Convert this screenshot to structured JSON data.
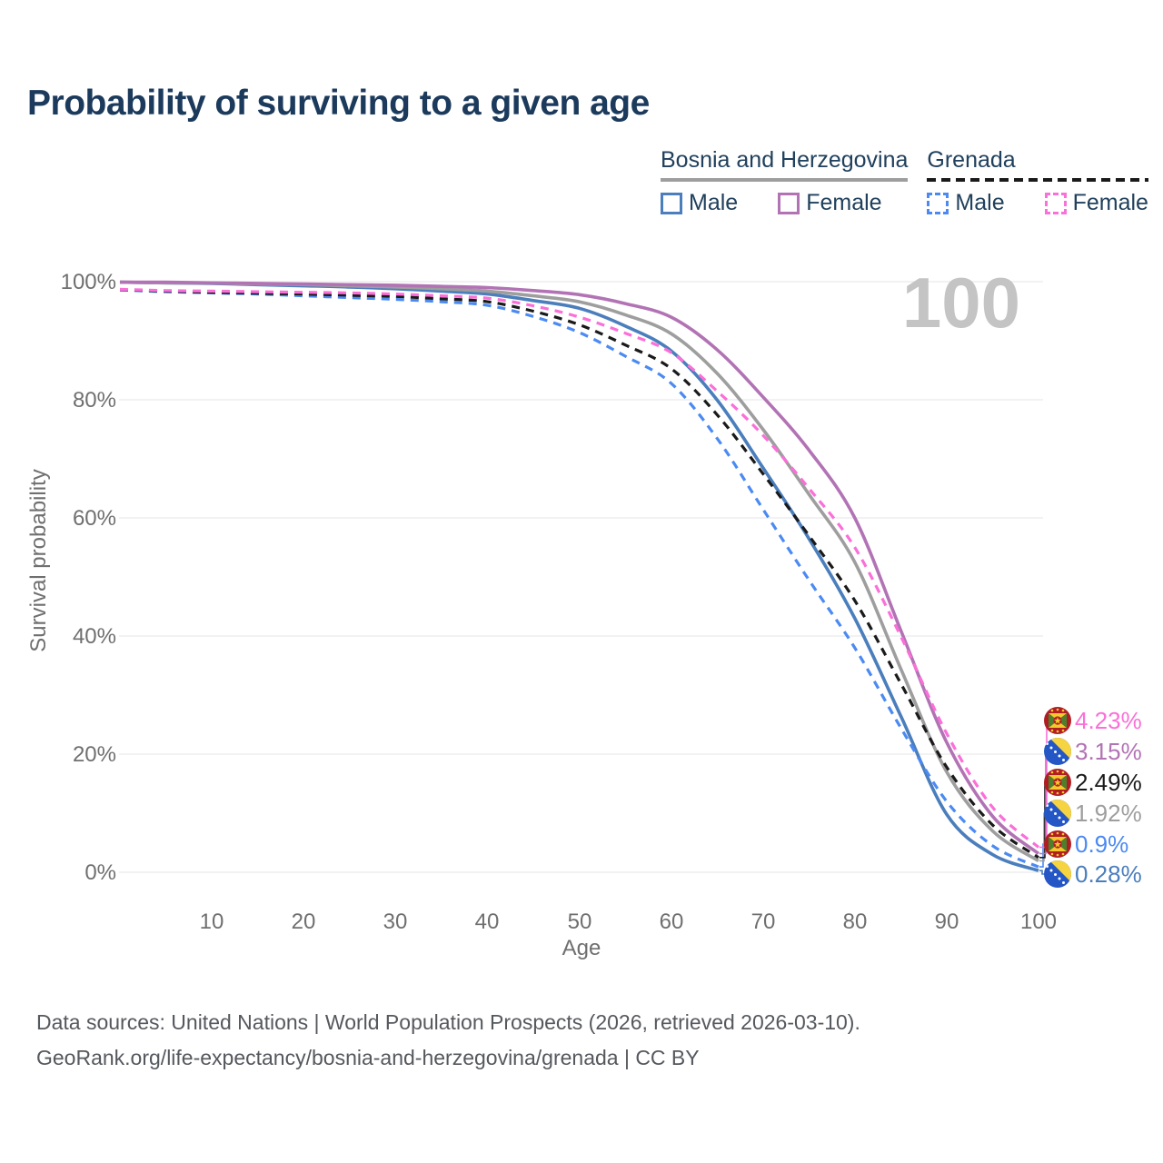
{
  "title": "Probability of surviving to a given age",
  "watermark": "100",
  "legend": {
    "groups": [
      {
        "label": "Bosnia and Herzegovina",
        "style": "solid",
        "color": "#9e9e9e",
        "items": [
          {
            "label": "Male",
            "color": "#4a7ebc",
            "dashed": false
          },
          {
            "label": "Female",
            "color": "#b273b5",
            "dashed": false
          }
        ]
      },
      {
        "label": "Grenada",
        "style": "dashed",
        "color": "#1a1a1a",
        "items": [
          {
            "label": "Male",
            "color": "#4b8af2",
            "dashed": true
          },
          {
            "label": "Female",
            "color": "#fb6fd8",
            "dashed": true
          }
        ]
      }
    ]
  },
  "axes": {
    "x": {
      "title": "Age",
      "ticks": [
        "10",
        "20",
        "30",
        "40",
        "50",
        "60",
        "70",
        "80",
        "90",
        "100"
      ]
    },
    "y": {
      "title": "Survival probability",
      "ticks": [
        "0%",
        "20%",
        "40%",
        "60%",
        "80%",
        "100%"
      ]
    }
  },
  "chart_data": {
    "type": "line",
    "title": "Probability of surviving to a given age",
    "xlabel": "Age",
    "ylabel": "Survival probability",
    "xlim": [
      0,
      100
    ],
    "ylim": [
      0,
      100
    ],
    "grid": "horizontal",
    "x": [
      0,
      5,
      10,
      15,
      20,
      25,
      30,
      35,
      40,
      45,
      50,
      55,
      60,
      65,
      70,
      75,
      80,
      85,
      90,
      95,
      100
    ],
    "series": [
      {
        "id": "bosnia-male",
        "name": "Bosnia and Herzegovina Male",
        "color": "#4a7ebc",
        "dashed": false,
        "label_row": 5,
        "values": [
          99.9,
          99.8,
          99.7,
          99.5,
          99.3,
          99.1,
          98.8,
          98.4,
          97.9,
          96.8,
          95.5,
          92.5,
          88.3,
          80.0,
          68.5,
          56.5,
          43.0,
          26.5,
          9.8,
          3.0,
          0.28
        ]
      },
      {
        "id": "grenada-male",
        "name": "Grenada Male",
        "color": "#4b8af2",
        "dashed": true,
        "label_row": 4,
        "values": [
          98.6,
          98.3,
          98.1,
          97.9,
          97.6,
          97.3,
          97.0,
          96.6,
          96.0,
          94.1,
          91.4,
          87.4,
          82.8,
          73.5,
          61.5,
          49.5,
          38.0,
          24.5,
          12.0,
          4.5,
          0.9
        ]
      },
      {
        "id": "bosnia-total",
        "name": "Bosnia and Herzegovina",
        "color": "#9e9e9e",
        "dashed": false,
        "label_row": 3,
        "values": [
          99.9,
          99.8,
          99.75,
          99.6,
          99.5,
          99.3,
          99.1,
          98.8,
          98.4,
          97.6,
          96.6,
          94.4,
          91.2,
          84.5,
          75.0,
          64.0,
          52.5,
          34.5,
          17.0,
          7.0,
          1.92
        ]
      },
      {
        "id": "grenada-total",
        "name": "Grenada",
        "color": "#1a1a1a",
        "dashed": true,
        "label_row": 2,
        "values": [
          98.65,
          98.4,
          98.2,
          98.05,
          97.9,
          97.7,
          97.5,
          97.1,
          96.6,
          95.0,
          92.7,
          89.3,
          85.3,
          77.5,
          67.5,
          57.0,
          46.0,
          32.0,
          17.8,
          8.0,
          2.49
        ]
      },
      {
        "id": "bosnia-female",
        "name": "Bosnia and Herzegovina Female",
        "color": "#b273b5",
        "dashed": false,
        "label_row": 1,
        "values": [
          99.9,
          99.9,
          99.8,
          99.7,
          99.6,
          99.5,
          99.4,
          99.2,
          99.0,
          98.5,
          97.8,
          96.3,
          94.0,
          88.5,
          80.5,
          71.5,
          60.0,
          41.0,
          22.0,
          9.5,
          3.15
        ]
      },
      {
        "id": "grenada-female",
        "name": "Grenada Female",
        "color": "#fb6fd8",
        "dashed": true,
        "label_row": 0,
        "values": [
          98.7,
          98.5,
          98.4,
          98.3,
          98.2,
          98.1,
          97.9,
          97.6,
          97.2,
          95.9,
          94.0,
          91.3,
          88.0,
          81.5,
          74.0,
          65.0,
          55.0,
          40.0,
          23.5,
          11.0,
          4.23
        ]
      }
    ]
  },
  "end_labels": [
    {
      "value": "4.23%",
      "country": "Grenada",
      "flag": "grenada",
      "color": "#fb6fd8"
    },
    {
      "value": "3.15%",
      "country": "Bosnia and Herzegovina",
      "flag": "bosnia",
      "color": "#b273b5"
    },
    {
      "value": "2.49%",
      "country": "Grenada",
      "flag": "grenada",
      "color": "#1a1a1a"
    },
    {
      "value": "1.92%",
      "country": "Bosnia and Herzegovina",
      "flag": "bosnia",
      "color": "#9e9e9e"
    },
    {
      "value": "0.9%",
      "country": "Grenada",
      "flag": "grenada",
      "color": "#4b8af2"
    },
    {
      "value": "0.28%",
      "country": "Bosnia and Herzegovina",
      "flag": "bosnia",
      "color": "#4a7ebc"
    }
  ],
  "footer": {
    "line1": "Data sources: United Nations | World Population Prospects (2026, retrieved 2026-03-10).",
    "line2": "GeoRank.org/life-expectancy/bosnia-and-herzegovina/grenada | CC BY"
  }
}
